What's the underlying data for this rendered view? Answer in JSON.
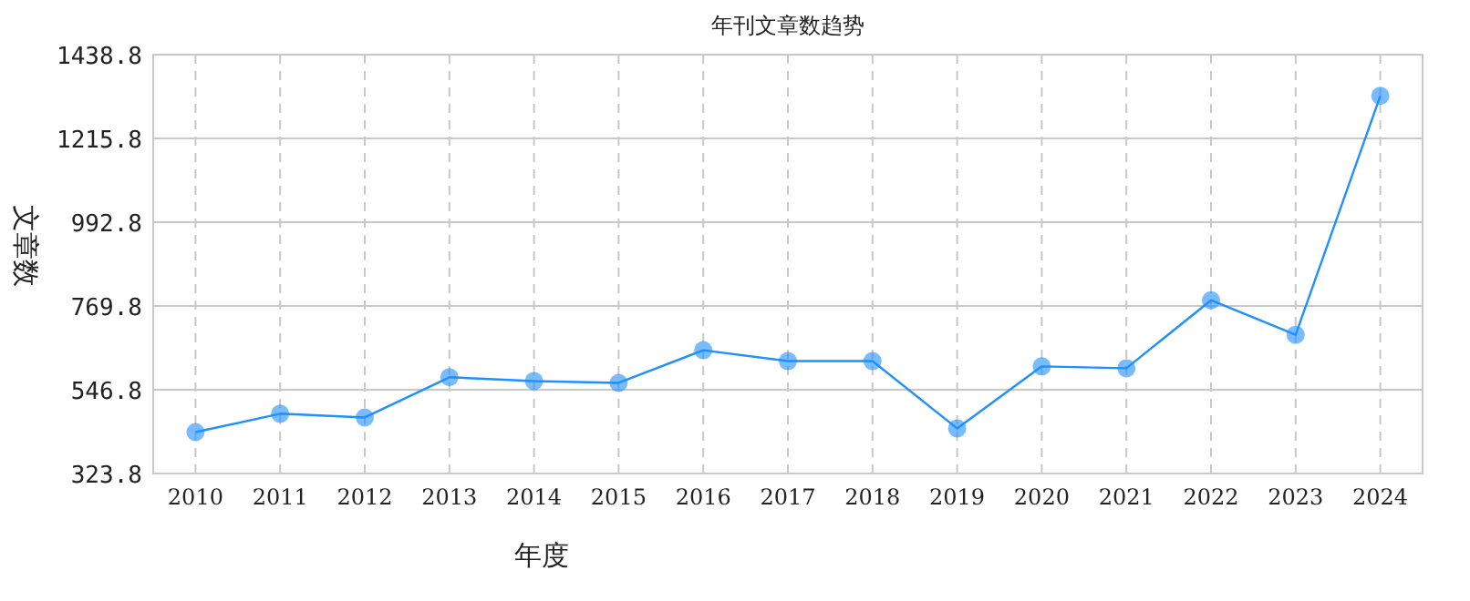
{
  "chart_data": {
    "type": "line",
    "title": "年刊文章数趋势",
    "xlabel": "年度",
    "ylabel": "文章数",
    "categories": [
      "2010",
      "2011",
      "2012",
      "2013",
      "2014",
      "2015",
      "2016",
      "2017",
      "2018",
      "2019",
      "2020",
      "2021",
      "2022",
      "2023",
      "2024"
    ],
    "series": [
      {
        "color": "#1e90ff",
        "values": [
          434,
          483,
          473,
          580,
          570,
          565,
          652,
          623,
          623,
          444,
          609,
          604,
          785,
          693,
          1329
        ]
      }
    ],
    "ylim": [
      323.8,
      1438.8
    ],
    "yticks": [
      {
        "value": 323.8,
        "label": "323.8"
      },
      {
        "value": 546.8,
        "label": "546.8"
      },
      {
        "value": 769.8,
        "label": "769.8"
      },
      {
        "value": 992.8,
        "label": "992.8"
      },
      {
        "value": 1215.8,
        "label": "1215.8"
      },
      {
        "value": 1438.8,
        "label": "1438.8"
      }
    ],
    "grid": true,
    "marker": "circle",
    "line_style": "solid"
  }
}
